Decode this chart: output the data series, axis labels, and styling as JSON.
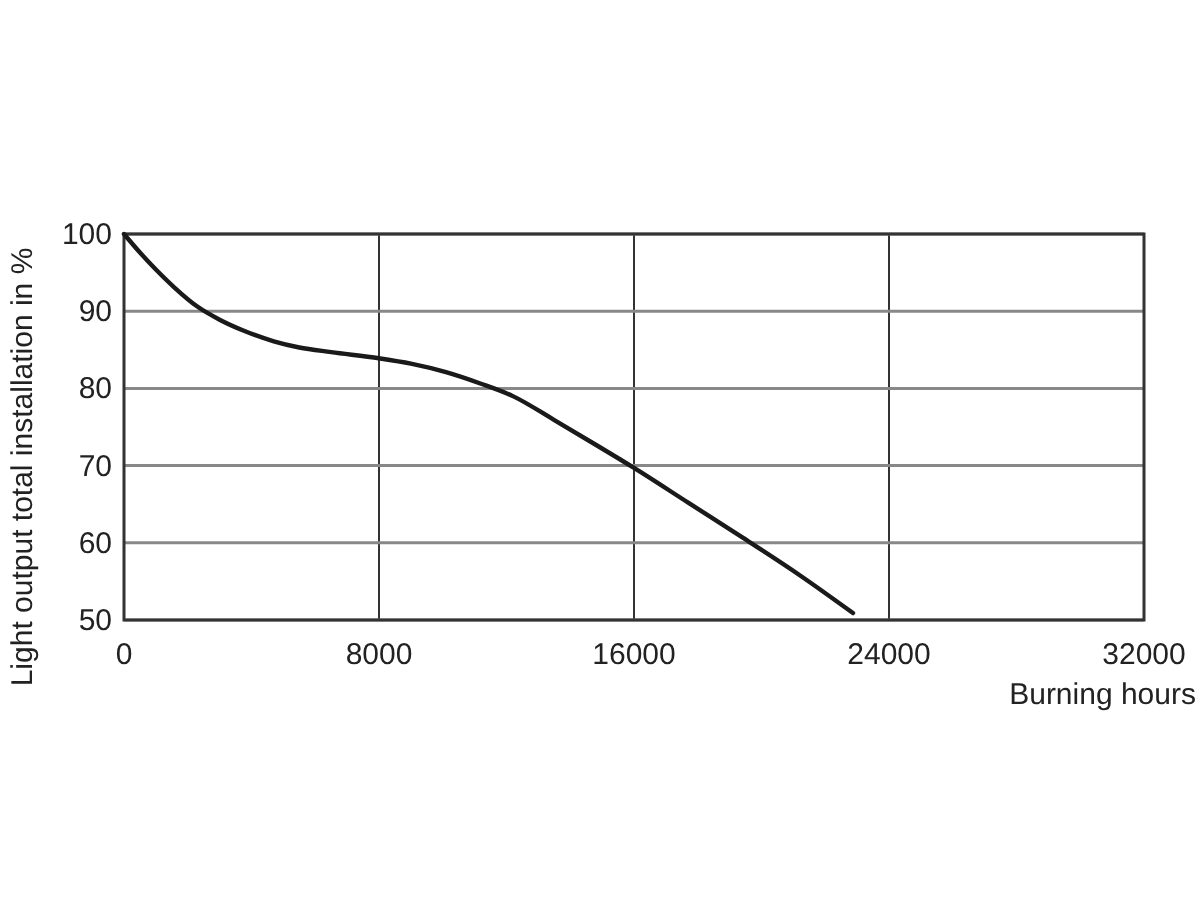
{
  "chart_data": {
    "type": "line",
    "xlabel": "Burning hours",
    "ylabel": "Light output total installation in %",
    "x": [
      0,
      500,
      1000,
      1600,
      2300,
      3000,
      3800,
      4700,
      5500,
      6500,
      8000,
      9000,
      10100,
      11200,
      12200,
      13500,
      14800,
      16000,
      17700,
      19400,
      21200,
      22870
    ],
    "series": [
      {
        "color": "#1a1a1a",
        "values": [
          100,
          97.6,
          95.4,
          93,
          90.6,
          88.9,
          87.4,
          86.1,
          85.3,
          84.7,
          83.9,
          83.2,
          82.1,
          80.6,
          79,
          75.9,
          72.7,
          69.7,
          65.2,
          60.7,
          55.8,
          50.9
        ]
      }
    ],
    "xlim": [
      0,
      32000
    ],
    "xticks": [
      0,
      8000,
      16000,
      24000,
      32000
    ],
    "ylim": [
      50,
      100
    ],
    "yticks": [
      50,
      60,
      70,
      80,
      90,
      100
    ],
    "grid": true,
    "marker": "none",
    "line_style": "solid"
  }
}
